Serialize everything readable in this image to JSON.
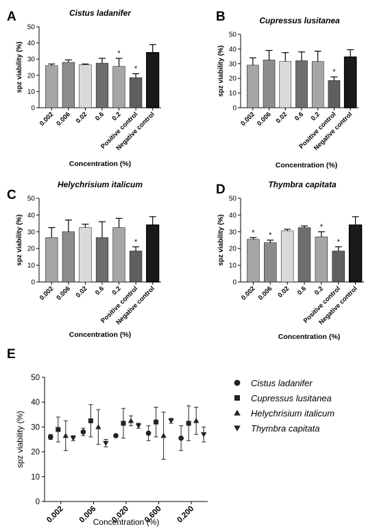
{
  "panel_letters": [
    "A",
    "B",
    "C",
    "D",
    "E"
  ],
  "chart_data": [
    {
      "panel": "A",
      "type": "bar",
      "title": "Cistus ladanifer",
      "xlabel": "Concentration (%)",
      "ylabel": "spz viability (%)",
      "ylim": [
        0,
        50
      ],
      "yticks": [
        0,
        10,
        20,
        30,
        40,
        50
      ],
      "categories": [
        "0.002",
        "0.006",
        "0.02",
        "0.6",
        "0.2",
        "Positive control",
        "Negative control"
      ],
      "values": [
        26,
        28,
        26.5,
        27.5,
        25.5,
        18.5,
        34
      ],
      "errors": [
        1,
        1.5,
        0.5,
        3,
        5,
        2.5,
        5
      ],
      "significance": [
        "",
        "",
        "",
        "",
        "*",
        "*",
        ""
      ],
      "bar_colors": [
        "#a6a6a6",
        "#8c8c8c",
        "#d9d9d9",
        "#6e6e6e",
        "#a6a6a6",
        "#5f5f5f",
        "#1a1a1a"
      ]
    },
    {
      "panel": "B",
      "type": "bar",
      "title": "Cupressus lusitanea",
      "xlabel": "Concentration (%)",
      "ylabel": "spz viability (%)",
      "ylim": [
        0,
        50
      ],
      "yticks": [
        0,
        10,
        20,
        30,
        40,
        50
      ],
      "categories": [
        "0.002",
        "0.006",
        "0.02",
        "0.6",
        "0.2",
        "Positive control",
        "Negative control"
      ],
      "values": [
        29,
        32.5,
        31.5,
        32,
        31.5,
        18.5,
        34.5
      ],
      "errors": [
        5,
        6.5,
        6,
        6,
        7,
        2.5,
        5
      ],
      "significance": [
        "",
        "",
        "",
        "",
        "",
        "*",
        ""
      ],
      "bar_colors": [
        "#a6a6a6",
        "#8c8c8c",
        "#d9d9d9",
        "#6e6e6e",
        "#a6a6a6",
        "#5f5f5f",
        "#1a1a1a"
      ]
    },
    {
      "panel": "C",
      "type": "bar",
      "title": "Helychrisium italicum",
      "xlabel": "Concentration (%)",
      "ylabel": "spz viability (%)",
      "ylim": [
        0,
        50
      ],
      "yticks": [
        0,
        10,
        20,
        30,
        40,
        50
      ],
      "categories": [
        "0.002",
        "0.006",
        "0.02",
        "0.6",
        "0.2",
        "Positive control",
        "Negative control"
      ],
      "values": [
        26.5,
        30,
        32.5,
        26.5,
        32.5,
        18.5,
        34
      ],
      "errors": [
        6,
        7,
        2,
        9.5,
        5.5,
        2.5,
        5
      ],
      "significance": [
        "",
        "",
        "",
        "",
        "",
        "*",
        ""
      ],
      "bar_colors": [
        "#a6a6a6",
        "#8c8c8c",
        "#d9d9d9",
        "#6e6e6e",
        "#a6a6a6",
        "#5f5f5f",
        "#1a1a1a"
      ]
    },
    {
      "panel": "D",
      "type": "bar",
      "title": "Thymbra capitata",
      "xlabel": "Concentration (%)",
      "ylabel": "spz viability (%)",
      "ylim": [
        0,
        50
      ],
      "yticks": [
        0,
        10,
        20,
        30,
        40,
        50
      ],
      "categories": [
        "0.002",
        "0.006",
        "0.02",
        "0.6",
        "0.2",
        "Positive control",
        "Negative control"
      ],
      "values": [
        25.5,
        23.5,
        30.5,
        32.5,
        27,
        18.5,
        34
      ],
      "errors": [
        1,
        1.5,
        1,
        1,
        3,
        2.5,
        5
      ],
      "significance": [
        "*",
        "*",
        "",
        "",
        "*",
        "*",
        ""
      ],
      "bar_colors": [
        "#a6a6a6",
        "#8c8c8c",
        "#d9d9d9",
        "#6e6e6e",
        "#a6a6a6",
        "#5f5f5f",
        "#1a1a1a"
      ]
    },
    {
      "panel": "E",
      "type": "scatter",
      "title": "",
      "xlabel": "Concentration (%)",
      "ylabel": "spz viability (%)",
      "ylim": [
        0,
        50
      ],
      "yticks": [
        0,
        10,
        20,
        30,
        40,
        50
      ],
      "categories": [
        "0.002",
        "0.006",
        "0.020",
        "0.600",
        "0.200"
      ],
      "series": [
        {
          "name": "Cistus ladanifer",
          "marker": "circle",
          "values": [
            26,
            28,
            26.5,
            27.5,
            25.5
          ],
          "errors": [
            1,
            1.5,
            0.5,
            3,
            5
          ]
        },
        {
          "name": "Cupressus lusitanea",
          "marker": "square",
          "values": [
            29,
            32.5,
            31.5,
            32,
            31.5
          ],
          "errors": [
            5,
            6.5,
            6,
            6,
            7
          ]
        },
        {
          "name": "Helychrisium italicum",
          "marker": "triangle-up",
          "values": [
            26.5,
            30,
            32.5,
            26.5,
            32.5
          ],
          "errors": [
            6,
            7,
            2,
            9.5,
            5.5
          ]
        },
        {
          "name": "Thymbra capitata",
          "marker": "triangle-down",
          "values": [
            25.5,
            23.5,
            30.5,
            32.5,
            27
          ],
          "errors": [
            1,
            1.5,
            1,
            1,
            3
          ]
        }
      ],
      "legend_position": "right"
    }
  ]
}
